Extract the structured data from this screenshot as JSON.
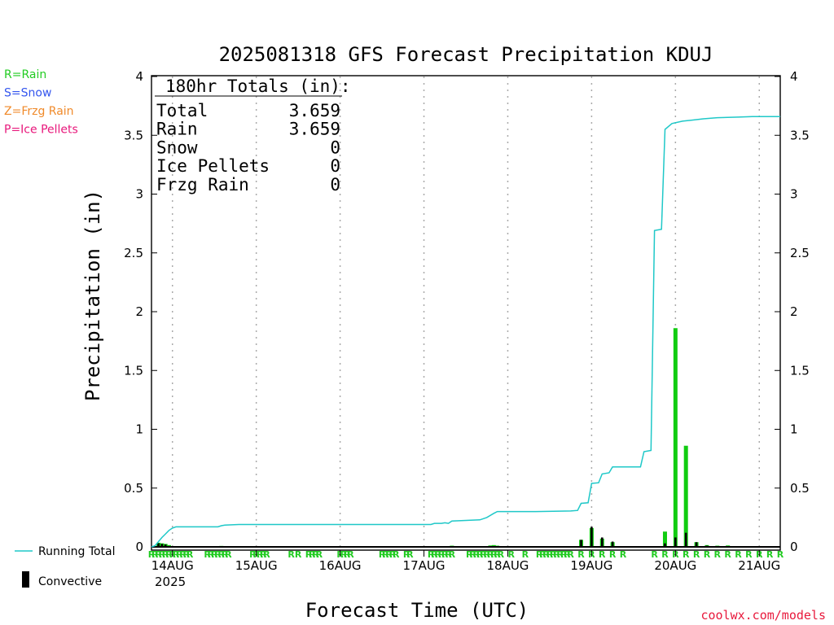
{
  "title": "2025081318 GFS Forecast Precipitation KDUJ",
  "xlabel": "Forecast Time (UTC)",
  "ylabel": "Precipitation (in)",
  "credit": "coolwx.com/models",
  "type_legend": [
    {
      "text": "R=Rain",
      "color": "#22cc22"
    },
    {
      "text": "S=Snow",
      "color": "#3355ee"
    },
    {
      "text": "Z=Frzg Rain",
      "color": "#f08a2a"
    },
    {
      "text": "P=Ice Pellets",
      "color": "#e8197c"
    }
  ],
  "series_legend": {
    "running_total": "Running Total",
    "convective": "Convective"
  },
  "totals": {
    "header": "180hr Totals (in):",
    "rows": [
      {
        "label": "Total",
        "value": "3.659"
      },
      {
        "label": "Rain",
        "value": "3.659"
      },
      {
        "label": "Snow",
        "value": "0"
      },
      {
        "label": "Ice Pellets",
        "value": "0"
      },
      {
        "label": "Frzg Rain",
        "value": "0"
      }
    ]
  },
  "colors": {
    "running_total": "#1fc8c8",
    "precip_bar": "#11cc11",
    "convective_bar": "#000000",
    "rain_marker": "#22cc22",
    "grid": "#aaaaaa"
  },
  "chart_data": {
    "type": "bar",
    "x_unit": "forecast hour",
    "x_range": [
      0,
      180
    ],
    "ylim": [
      0,
      4
    ],
    "yticks": [
      0,
      0.5,
      1,
      1.5,
      2,
      2.5,
      3,
      3.5,
      4
    ],
    "ytick_labels": [
      "0",
      "0.5",
      "1",
      "1.5",
      "2",
      "2.5",
      "3",
      "3.5",
      "4"
    ],
    "date_ticks": [
      {
        "hour": 6,
        "label": "14AUG"
      },
      {
        "hour": 30,
        "label": "15AUG"
      },
      {
        "hour": 54,
        "label": "16AUG"
      },
      {
        "hour": 78,
        "label": "17AUG"
      },
      {
        "hour": 102,
        "label": "18AUG"
      },
      {
        "hour": 126,
        "label": "19AUG"
      },
      {
        "hour": 150,
        "label": "20AUG"
      },
      {
        "hour": 174,
        "label": "21AUG"
      }
    ],
    "year_label": "2025",
    "precip_bars": [
      [
        2,
        0.035
      ],
      [
        3,
        0.03
      ],
      [
        4,
        0.025
      ],
      [
        5,
        0.015
      ],
      [
        7,
        0.005
      ],
      [
        20,
        0.008
      ],
      [
        21,
        0.005
      ],
      [
        34,
        0.002
      ],
      [
        86,
        0.01
      ],
      [
        97,
        0.012
      ],
      [
        98,
        0.015
      ],
      [
        99,
        0.01
      ],
      [
        123,
        0.06
      ],
      [
        126,
        0.16
      ],
      [
        129,
        0.07
      ],
      [
        132,
        0.04
      ],
      [
        147,
        0.13
      ],
      [
        150,
        1.86
      ],
      [
        153,
        0.86
      ],
      [
        156,
        0.04
      ],
      [
        159,
        0.015
      ],
      [
        162,
        0.01
      ],
      [
        165,
        0.012
      ],
      [
        168,
        0.005
      ]
    ],
    "convective_bars": [
      [
        2,
        0.03
      ],
      [
        3,
        0.025
      ],
      [
        4,
        0.02
      ],
      [
        123,
        0.06
      ],
      [
        126,
        0.17
      ],
      [
        129,
        0.08
      ],
      [
        132,
        0.045
      ],
      [
        147,
        0.03
      ],
      [
        150,
        0.08
      ],
      [
        153,
        0.12
      ],
      [
        156,
        0.04
      ],
      [
        159,
        0.01
      ]
    ],
    "running_total": [
      [
        0,
        0
      ],
      [
        1,
        0.01
      ],
      [
        2,
        0.045
      ],
      [
        3,
        0.08
      ],
      [
        4,
        0.11
      ],
      [
        5,
        0.14
      ],
      [
        6,
        0.16
      ],
      [
        7,
        0.17
      ],
      [
        12,
        0.17
      ],
      [
        19,
        0.17
      ],
      [
        20,
        0.18
      ],
      [
        21,
        0.185
      ],
      [
        25,
        0.19
      ],
      [
        40,
        0.19
      ],
      [
        60,
        0.19
      ],
      [
        80,
        0.19
      ],
      [
        81,
        0.2
      ],
      [
        83,
        0.2
      ],
      [
        84,
        0.205
      ],
      [
        85,
        0.2
      ],
      [
        86,
        0.22
      ],
      [
        94,
        0.23
      ],
      [
        96,
        0.25
      ],
      [
        98,
        0.285
      ],
      [
        99,
        0.3
      ],
      [
        110,
        0.3
      ],
      [
        120,
        0.305
      ],
      [
        122,
        0.31
      ],
      [
        123,
        0.37
      ],
      [
        125,
        0.375
      ],
      [
        126,
        0.54
      ],
      [
        128,
        0.545
      ],
      [
        129,
        0.62
      ],
      [
        131,
        0.63
      ],
      [
        132,
        0.68
      ],
      [
        140,
        0.68
      ],
      [
        141,
        0.81
      ],
      [
        143,
        0.82
      ],
      [
        144,
        2.69
      ],
      [
        146,
        2.7
      ],
      [
        147,
        3.55
      ],
      [
        149,
        3.6
      ],
      [
        152,
        3.62
      ],
      [
        155,
        3.63
      ],
      [
        158,
        3.64
      ],
      [
        162,
        3.65
      ],
      [
        168,
        3.655
      ],
      [
        172,
        3.659
      ],
      [
        180,
        3.659
      ]
    ],
    "rain_markers": {
      "symbol": "R",
      "hours": [
        0,
        1,
        2,
        3,
        4,
        5,
        6,
        7,
        8,
        9,
        10,
        11,
        16,
        17,
        18,
        19,
        20,
        21,
        22,
        29,
        30,
        31,
        32,
        33,
        40,
        42,
        45,
        46,
        47,
        48,
        54,
        55,
        56,
        57,
        66,
        67,
        68,
        69,
        70,
        73,
        74,
        80,
        81,
        82,
        83,
        84,
        85,
        86,
        91,
        92,
        93,
        94,
        95,
        96,
        97,
        98,
        99,
        100,
        103,
        107,
        111,
        112,
        113,
        114,
        115,
        116,
        117,
        118,
        119,
        120,
        123,
        126,
        129,
        132,
        135,
        144,
        147,
        150,
        153,
        156,
        159,
        162,
        165,
        168,
        171,
        174,
        177,
        180
      ]
    }
  }
}
